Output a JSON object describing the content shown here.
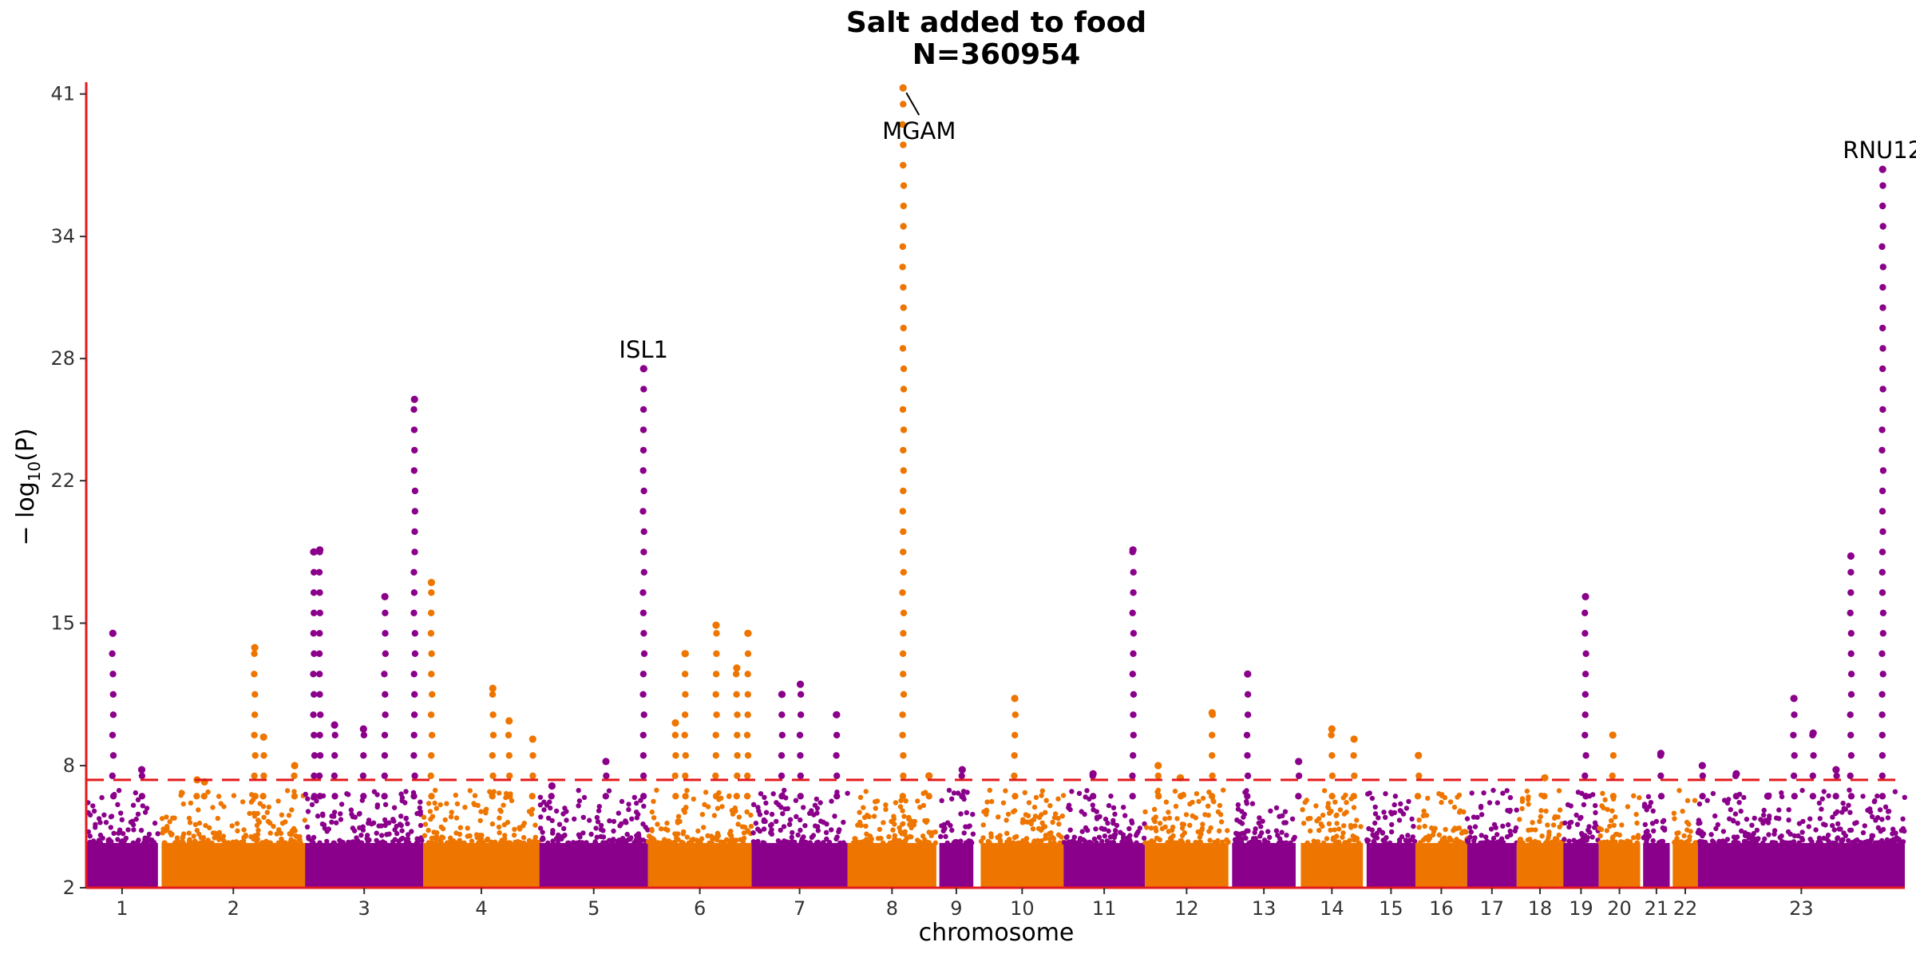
{
  "chart_data": {
    "type": "scatter",
    "subtype": "manhattan",
    "title": "Salt added to food",
    "subtitle": "N=360954",
    "xlabel": "chromosome",
    "ylabel_prefix": "− log",
    "ylabel_sub": "10",
    "ylabel_suffix": "(P)",
    "ylim": [
      2,
      41.5
    ],
    "yticks": [
      "2",
      "8",
      "15",
      "22",
      "28",
      "34",
      "41"
    ],
    "threshold": 7.3,
    "grid": false,
    "colors": {
      "odd": "#8B008B",
      "even": "#EE7600",
      "threshold": "#E41A1C",
      "axis": "#E41A1C"
    },
    "chromosomes": [
      {
        "label": "1",
        "start": 0,
        "end": 9.7
      },
      {
        "label": "2",
        "start": 10.2,
        "end": 29.6
      },
      {
        "label": "3",
        "start": 29.6,
        "end": 45.6
      },
      {
        "label": "4",
        "start": 45.6,
        "end": 61.3
      },
      {
        "label": "5",
        "start": 61.3,
        "end": 76.0
      },
      {
        "label": "6",
        "start": 76.0,
        "end": 90.0
      },
      {
        "label": "7",
        "start": 90.0,
        "end": 103.0
      },
      {
        "label": "8",
        "start": 103.0,
        "end": 115.0
      },
      {
        "label": "9",
        "start": 115.4,
        "end": 120.0
      },
      {
        "label": "10",
        "start": 121.0,
        "end": 132.2
      },
      {
        "label": "11",
        "start": 132.2,
        "end": 143.2
      },
      {
        "label": "12",
        "start": 143.2,
        "end": 154.5
      },
      {
        "label": "13",
        "start": 155.0,
        "end": 163.6
      },
      {
        "label": "14",
        "start": 164.3,
        "end": 172.7
      },
      {
        "label": "15",
        "start": 173.2,
        "end": 179.8
      },
      {
        "label": "16",
        "start": 179.8,
        "end": 186.8
      },
      {
        "label": "17",
        "start": 186.8,
        "end": 193.5
      },
      {
        "label": "18",
        "start": 193.5,
        "end": 199.8
      },
      {
        "label": "19",
        "start": 199.8,
        "end": 204.6
      },
      {
        "label": "20",
        "start": 204.6,
        "end": 210.2
      },
      {
        "label": "21",
        "start": 210.6,
        "end": 214.2
      },
      {
        "label": "22",
        "start": 214.6,
        "end": 218.0
      },
      {
        "label": "23",
        "start": 218.0,
        "end": 246.0
      }
    ],
    "peaks": [
      {
        "x": 3.6,
        "y": 14.5
      },
      {
        "x": 7.5,
        "y": 7.8
      },
      {
        "x": 15.0,
        "y": 7.3
      },
      {
        "x": 16.0,
        "y": 7.2
      },
      {
        "x": 22.8,
        "y": 13.8
      },
      {
        "x": 24.0,
        "y": 9.4
      },
      {
        "x": 28.2,
        "y": 8.0
      },
      {
        "x": 30.8,
        "y": 18.5
      },
      {
        "x": 31.6,
        "y": 18.6
      },
      {
        "x": 33.6,
        "y": 10.0
      },
      {
        "x": 37.5,
        "y": 9.8
      },
      {
        "x": 40.4,
        "y": 16.3
      },
      {
        "x": 44.4,
        "y": 26.0
      },
      {
        "x": 46.7,
        "y": 17.0
      },
      {
        "x": 55.0,
        "y": 11.8
      },
      {
        "x": 57.2,
        "y": 10.2
      },
      {
        "x": 60.4,
        "y": 9.3
      },
      {
        "x": 63.0,
        "y": 7.0
      },
      {
        "x": 70.3,
        "y": 8.2
      },
      {
        "x": 75.4,
        "y": 27.5
      },
      {
        "x": 79.7,
        "y": 10.1
      },
      {
        "x": 81.0,
        "y": 13.5
      },
      {
        "x": 85.2,
        "y": 14.9
      },
      {
        "x": 88.0,
        "y": 12.8
      },
      {
        "x": 89.5,
        "y": 14.5
      },
      {
        "x": 94.1,
        "y": 11.5
      },
      {
        "x": 96.6,
        "y": 12.0
      },
      {
        "x": 101.5,
        "y": 10.5
      },
      {
        "x": 110.5,
        "y": 41.3
      },
      {
        "x": 114.0,
        "y": 7.5
      },
      {
        "x": 118.5,
        "y": 7.8
      },
      {
        "x": 125.6,
        "y": 11.3
      },
      {
        "x": 136.2,
        "y": 7.6
      },
      {
        "x": 141.6,
        "y": 18.6
      },
      {
        "x": 145.0,
        "y": 8.0
      },
      {
        "x": 148.0,
        "y": 7.4
      },
      {
        "x": 152.3,
        "y": 10.6
      },
      {
        "x": 157.1,
        "y": 12.5
      },
      {
        "x": 164.0,
        "y": 8.2
      },
      {
        "x": 168.5,
        "y": 9.8
      },
      {
        "x": 171.5,
        "y": 9.3
      },
      {
        "x": 180.2,
        "y": 8.5
      },
      {
        "x": 197.3,
        "y": 7.4
      },
      {
        "x": 202.8,
        "y": 16.3
      },
      {
        "x": 206.5,
        "y": 9.5
      },
      {
        "x": 213.0,
        "y": 8.6
      },
      {
        "x": 218.6,
        "y": 8.0
      },
      {
        "x": 223.2,
        "y": 7.6
      },
      {
        "x": 227.5,
        "y": 6.5
      },
      {
        "x": 231.0,
        "y": 11.3
      },
      {
        "x": 233.6,
        "y": 9.6
      },
      {
        "x": 236.7,
        "y": 7.8
      },
      {
        "x": 238.7,
        "y": 18.3
      },
      {
        "x": 243.0,
        "y": 37.3
      }
    ],
    "annotations": [
      {
        "label": "ISL1",
        "x": 75.4,
        "y": 27.5
      },
      {
        "label": "MGAM",
        "x": 110.5,
        "y": 41.3
      },
      {
        "label": "RNU12",
        "x": 243.0,
        "y": 37.3
      }
    ]
  }
}
